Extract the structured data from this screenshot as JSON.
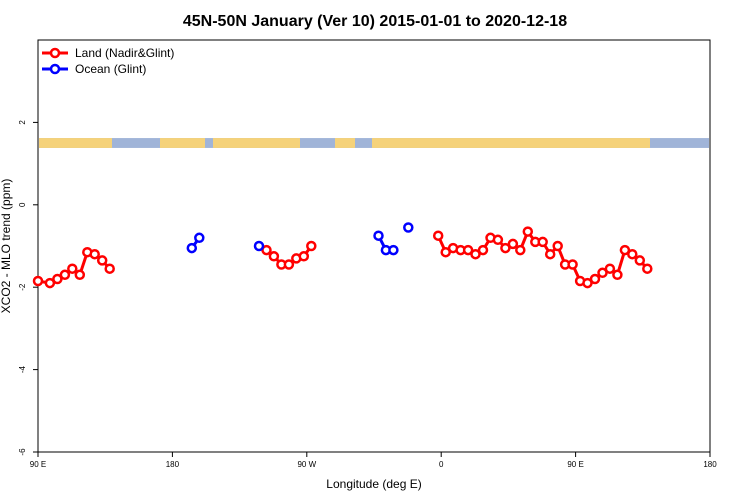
{
  "chart_data": {
    "type": "line",
    "title": "45N-50N January (Ver 10)   2015-01-01 to 2020-12-18",
    "xlabel": "Longitude (deg E)",
    "ylabel": "XCO2 - MLO trend (ppm)",
    "xlim": [
      90,
      450
    ],
    "ylim": [
      -6,
      4
    ],
    "x_ticks": [
      {
        "value": 90,
        "label": "90 E"
      },
      {
        "value": 180,
        "label": "180"
      },
      {
        "value": 270,
        "label": "90 W"
      },
      {
        "value": 360,
        "label": "0"
      },
      {
        "value": 450,
        "label": "90 E"
      },
      {
        "value": 540,
        "label": "180"
      }
    ],
    "y_ticks": [
      {
        "value": 2,
        "label": "2"
      },
      {
        "value": 0,
        "label": "0"
      },
      {
        "value": -2,
        "label": "-2"
      },
      {
        "value": -4,
        "label": "-4"
      },
      {
        "value": -6,
        "label": "-6"
      }
    ],
    "legend_position": "top-left",
    "series": [
      {
        "name": "Land (Nadir&Glint)",
        "color": "#ff0000",
        "segments": [
          [
            [
              90,
              -1.85
            ],
            [
              98,
              -1.9
            ],
            [
              103,
              -1.8
            ],
            [
              108,
              -1.7
            ],
            [
              113,
              -1.55
            ],
            [
              118,
              -1.7
            ],
            [
              123,
              -1.15
            ],
            [
              128,
              -1.2
            ],
            [
              133,
              -1.35
            ],
            [
              138,
              -1.55
            ]
          ],
          [
            [
              243,
              -1.1
            ],
            [
              248,
              -1.25
            ],
            [
              253,
              -1.45
            ],
            [
              258,
              -1.45
            ],
            [
              263,
              -1.3
            ],
            [
              268,
              -1.25
            ],
            [
              273,
              -1.0
            ]
          ],
          [
            [
              358,
              -0.75
            ],
            [
              363,
              -1.15
            ],
            [
              368,
              -1.05
            ],
            [
              373,
              -1.1
            ],
            [
              378,
              -1.1
            ],
            [
              383,
              -1.2
            ],
            [
              388,
              -1.1
            ],
            [
              393,
              -0.8
            ],
            [
              398,
              -0.85
            ],
            [
              403,
              -1.05
            ],
            [
              408,
              -0.95
            ],
            [
              413,
              -1.1
            ],
            [
              418,
              -0.65
            ],
            [
              423,
              -0.9
            ],
            [
              428,
              -0.9
            ],
            [
              433,
              -1.2
            ],
            [
              438,
              -1.0
            ],
            [
              443,
              -1.45
            ],
            [
              448,
              -1.45
            ],
            [
              453,
              -1.85
            ],
            [
              458,
              -1.9
            ],
            [
              463,
              -1.8
            ],
            [
              468,
              -1.65
            ],
            [
              473,
              -1.55
            ],
            [
              478,
              -1.7
            ],
            [
              483,
              -1.1
            ],
            [
              488,
              -1.2
            ],
            [
              493,
              -1.35
            ],
            [
              498,
              -1.55
            ]
          ]
        ]
      },
      {
        "name": "Ocean (Glint)",
        "color": "#0000ff",
        "segments": [
          [
            [
              193,
              -1.05
            ],
            [
              198,
              -0.8
            ]
          ],
          [
            [
              238,
              -1.0
            ]
          ],
          [
            [
              318,
              -0.75
            ],
            [
              323,
              -1.1
            ],
            [
              328,
              -1.1
            ]
          ],
          [
            [
              338,
              -0.55
            ]
          ]
        ]
      }
    ],
    "map_strip": {
      "y_top": 1.62,
      "y_bottom": 1.38,
      "ocean_color": "#a0b4d8",
      "land_color": "#f5d27a"
    }
  }
}
